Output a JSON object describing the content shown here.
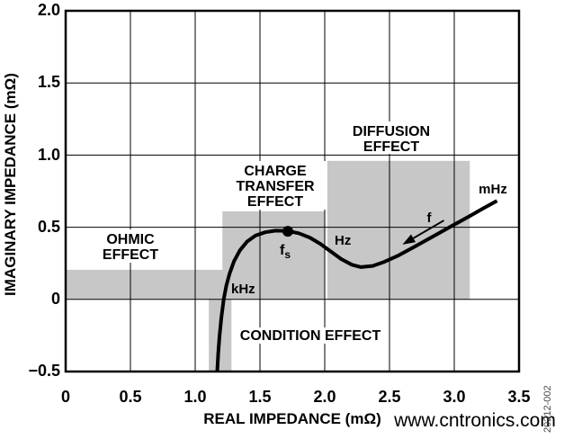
{
  "chart_data": {
    "type": "line",
    "title": "",
    "xlabel": "REAL IMPEDANCE (mΩ)",
    "ylabel": "IMAGINARY IMPEDANCE (mΩ)",
    "xlim": [
      0,
      3.5
    ],
    "ylim": [
      -0.5,
      2.0
    ],
    "grid": true,
    "x_ticks": [
      0,
      0.5,
      1.0,
      1.5,
      2.0,
      2.5,
      3.0,
      3.5
    ],
    "x_tick_labels": [
      "0",
      "0.5",
      "1.0",
      "1.5",
      "2.0",
      "2.5",
      "3.0",
      "3.5"
    ],
    "y_ticks": [
      2.0,
      1.5,
      1.0,
      0.5,
      0,
      -0.5
    ],
    "y_tick_labels": [
      "2.0",
      "1.5",
      "1.0",
      "0.5",
      "0",
      "−0.5"
    ],
    "curve": {
      "name": "battery-impedance-nyquist",
      "color": "#000000",
      "points": [
        [
          1.17,
          -0.5
        ],
        [
          1.178,
          -0.375
        ],
        [
          1.188,
          -0.25
        ],
        [
          1.202,
          -0.125
        ],
        [
          1.22,
          0.0
        ],
        [
          1.24,
          0.095
        ],
        [
          1.266,
          0.18
        ],
        [
          1.3,
          0.265
        ],
        [
          1.345,
          0.34
        ],
        [
          1.4,
          0.4
        ],
        [
          1.465,
          0.442
        ],
        [
          1.54,
          0.465
        ],
        [
          1.62,
          0.476
        ],
        [
          1.715,
          0.474
        ],
        [
          1.8,
          0.458
        ],
        [
          1.885,
          0.428
        ],
        [
          1.965,
          0.385
        ],
        [
          2.05,
          0.33
        ],
        [
          2.13,
          0.278
        ],
        [
          2.21,
          0.24
        ],
        [
          2.28,
          0.224
        ],
        [
          2.37,
          0.232
        ],
        [
          2.46,
          0.26
        ],
        [
          2.57,
          0.305
        ],
        [
          2.7,
          0.368
        ],
        [
          2.84,
          0.438
        ],
        [
          2.98,
          0.508
        ],
        [
          3.12,
          0.578
        ],
        [
          3.23,
          0.634
        ],
        [
          3.33,
          0.683
        ]
      ]
    },
    "fs_point": {
      "x": 1.715,
      "y": 0.472,
      "label_main": "f",
      "label_sub": "s"
    },
    "frequency_arrow": {
      "from": [
        2.92,
        0.547
      ],
      "to": [
        2.6,
        0.38
      ],
      "label": "f"
    },
    "regions": [
      {
        "id": "ohmic-effect",
        "x": [
          0,
          1.22
        ],
        "y": [
          0,
          0.205
        ],
        "lines": [
          "OHMIC",
          "EFFECT"
        ]
      },
      {
        "id": "charge-transfer-effect",
        "x": [
          1.21,
          2.0
        ],
        "y": [
          0,
          0.61
        ],
        "lines": [
          "CHARGE",
          "TRANSFER",
          "EFFECT"
        ]
      },
      {
        "id": "diffusion-effect",
        "x": [
          2.02,
          3.12
        ],
        "y": [
          0,
          0.96
        ],
        "lines": [
          "DIFFUSION",
          "EFFECT"
        ]
      },
      {
        "id": "condition-effect",
        "x": [
          1.105,
          1.28
        ],
        "y": [
          -0.5,
          0
        ],
        "lines": [
          "CONDITION EFFECT"
        ]
      }
    ],
    "frequency_labels": [
      {
        "text": "kHz",
        "x": 1.28,
        "y": 0.05
      },
      {
        "text": "Hz",
        "x": 2.08,
        "y": 0.38
      },
      {
        "text": "mHz",
        "x": 3.3,
        "y": 0.74
      }
    ],
    "colors": {
      "region_fill": "#c7c7c7",
      "curve": "#000000",
      "grid": "#000000",
      "frame": "#000000"
    }
  },
  "watermark": {
    "text": "www.cntronics.com",
    "color": "#b2dcae"
  },
  "figure_number": "20212-002"
}
